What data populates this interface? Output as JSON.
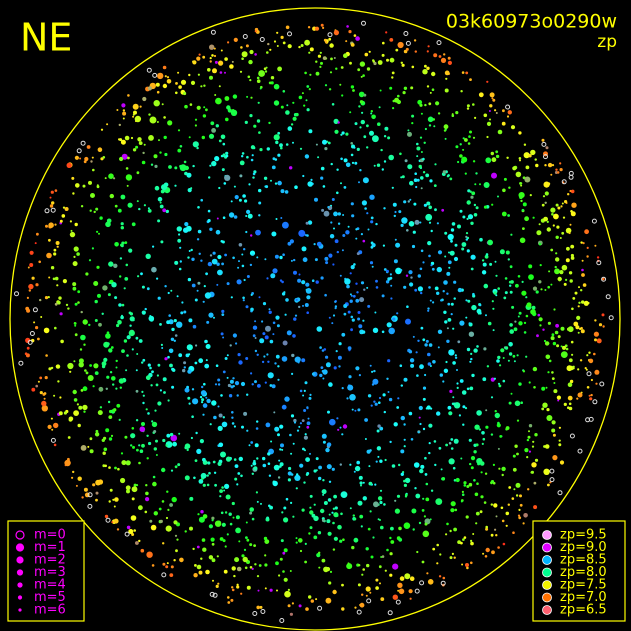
{
  "header": {
    "direction": "NE",
    "frame_id": "03k60973o0290w",
    "mode": "zp"
  },
  "magnitude_legend": {
    "items": [
      "m=0",
      "m=1",
      "m=2",
      "m=3",
      "m=4",
      "m=5",
      "m=6"
    ],
    "color": "#ff00ff"
  },
  "zp_legend": {
    "items": [
      {
        "label": "zp=9.5",
        "color": "#ff9cff"
      },
      {
        "label": "zp=9.0",
        "color": "#e000ff"
      },
      {
        "label": "zp=8.5",
        "color": "#00b4ff"
      },
      {
        "label": "zp=8.0",
        "color": "#00ff90"
      },
      {
        "label": "zp=7.5",
        "color": "#f0f000"
      },
      {
        "label": "zp=7.0",
        "color": "#ff7000"
      },
      {
        "label": "zp=6.5",
        "color": "#ff6070"
      }
    ]
  }
}
